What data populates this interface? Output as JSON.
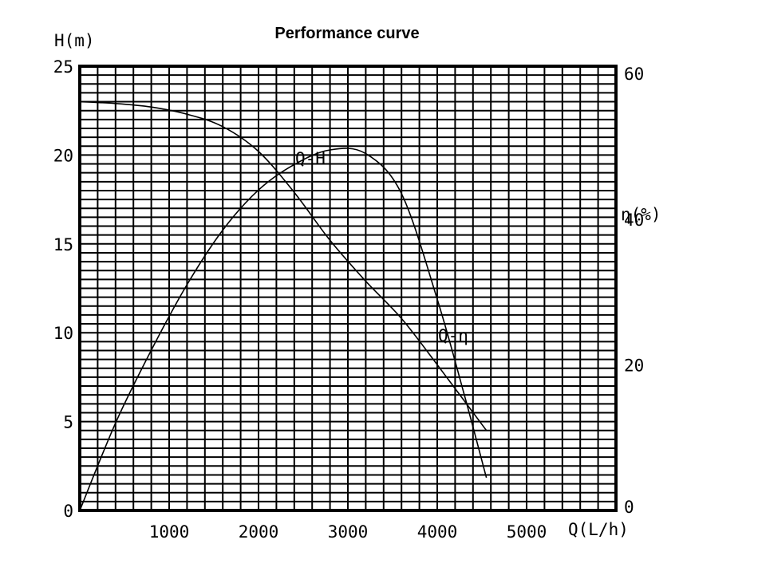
{
  "chart_data": {
    "type": "line",
    "title": "Performance curve",
    "x": {
      "label": "Q(L/h)",
      "range": [
        0,
        6000
      ],
      "ticks": [
        1000,
        2000,
        3000,
        4000,
        5000
      ],
      "tick_labels": [
        "1000",
        "2000",
        "3000",
        "4000",
        "5000"
      ],
      "minor_step": 200
    },
    "y_left": {
      "label": "H(m)",
      "range": [
        0,
        25
      ],
      "ticks": [
        0,
        5,
        10,
        15,
        20,
        25
      ],
      "tick_labels": [
        "0",
        "5",
        "10",
        "15",
        "20",
        "25"
      ],
      "minor_step": 0.5
    },
    "y_right": {
      "label": "η(%)",
      "range": [
        0,
        61
      ],
      "ticks": [
        0,
        20,
        40,
        60
      ],
      "tick_labels": [
        "0",
        "20",
        "40",
        "60"
      ]
    },
    "grid": true,
    "series": [
      {
        "name": "Q-H",
        "axis": "left",
        "x": [
          0,
          400,
          800,
          1200,
          1600,
          2000,
          2400,
          2800,
          3200,
          3600,
          4000,
          4550
        ],
        "y": [
          23,
          22.9,
          22.7,
          22.3,
          21.6,
          20.2,
          17.9,
          15.2,
          12.9,
          10.8,
          8.2,
          4.5
        ]
      },
      {
        "name": "Q-η",
        "axis": "right",
        "x": [
          0,
          400,
          800,
          1200,
          1600,
          2000,
          2400,
          2800,
          3200,
          3600,
          4000,
          4300,
          4550
        ],
        "y": [
          0,
          12,
          22,
          31,
          38.5,
          44,
          47.5,
          49.5,
          49,
          43.5,
          29,
          16,
          4.5
        ]
      }
    ],
    "curve_labels": [
      {
        "series": "Q-H",
        "text": "Q-H"
      },
      {
        "series": "Q-η",
        "text": "Q-η"
      }
    ]
  }
}
